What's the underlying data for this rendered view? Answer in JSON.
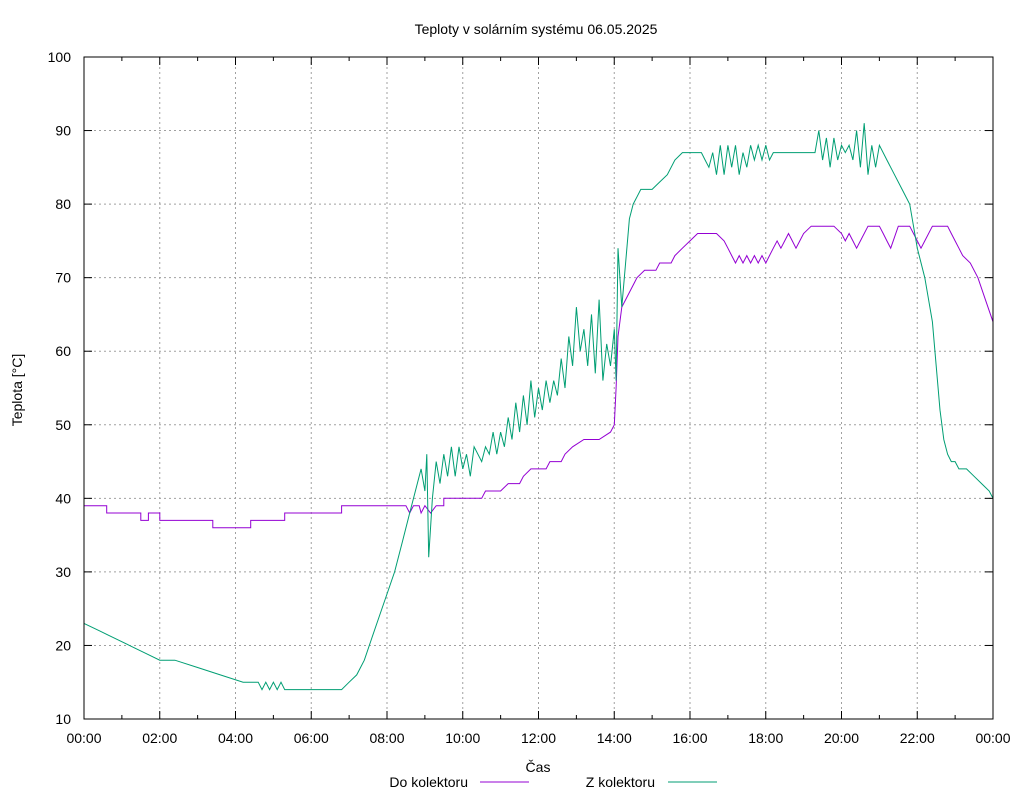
{
  "chart_data": {
    "type": "line",
    "title": "Teploty v solárním systému 06.05.2025",
    "xlabel": "Čas",
    "ylabel": "Teplota [°C]",
    "xlim": [
      0,
      24
    ],
    "ylim": [
      10,
      100
    ],
    "grid": true,
    "legend_position": "bottom",
    "x_ticks": [
      {
        "v": 0,
        "label": "00:00"
      },
      {
        "v": 2,
        "label": "02:00"
      },
      {
        "v": 4,
        "label": "04:00"
      },
      {
        "v": 6,
        "label": "06:00"
      },
      {
        "v": 8,
        "label": "08:00"
      },
      {
        "v": 10,
        "label": "10:00"
      },
      {
        "v": 12,
        "label": "12:00"
      },
      {
        "v": 14,
        "label": "14:00"
      },
      {
        "v": 16,
        "label": "16:00"
      },
      {
        "v": 18,
        "label": "18:00"
      },
      {
        "v": 20,
        "label": "20:00"
      },
      {
        "v": 22,
        "label": "22:00"
      },
      {
        "v": 24,
        "label": "00:00"
      }
    ],
    "y_ticks": [
      {
        "v": 10,
        "label": "10"
      },
      {
        "v": 20,
        "label": "20"
      },
      {
        "v": 30,
        "label": "30"
      },
      {
        "v": 40,
        "label": "40"
      },
      {
        "v": 50,
        "label": "50"
      },
      {
        "v": 60,
        "label": "60"
      },
      {
        "v": 70,
        "label": "70"
      },
      {
        "v": 80,
        "label": "80"
      },
      {
        "v": 90,
        "label": "90"
      },
      {
        "v": 100,
        "label": "100"
      }
    ],
    "series": [
      {
        "name": "Do kolektoru",
        "color": "#9400d3",
        "points": [
          [
            0,
            39
          ],
          [
            0.6,
            39
          ],
          [
            0.6,
            38
          ],
          [
            1.5,
            38
          ],
          [
            1.5,
            37
          ],
          [
            1.7,
            37
          ],
          [
            1.7,
            38
          ],
          [
            2.0,
            38
          ],
          [
            2.0,
            37
          ],
          [
            3.4,
            37
          ],
          [
            3.4,
            36
          ],
          [
            4.4,
            36
          ],
          [
            4.4,
            37
          ],
          [
            5.3,
            37
          ],
          [
            5.3,
            38
          ],
          [
            6.8,
            38
          ],
          [
            6.8,
            39
          ],
          [
            8.5,
            39
          ],
          [
            8.6,
            38
          ],
          [
            8.7,
            39
          ],
          [
            8.85,
            39
          ],
          [
            8.9,
            38
          ],
          [
            9.0,
            39
          ],
          [
            9.15,
            38
          ],
          [
            9.3,
            39
          ],
          [
            9.5,
            39
          ],
          [
            9.5,
            40
          ],
          [
            10.5,
            40
          ],
          [
            10.6,
            41
          ],
          [
            11.0,
            41
          ],
          [
            11.2,
            42
          ],
          [
            11.5,
            42
          ],
          [
            11.6,
            43
          ],
          [
            11.8,
            44
          ],
          [
            12.2,
            44
          ],
          [
            12.3,
            45
          ],
          [
            12.6,
            45
          ],
          [
            12.7,
            46
          ],
          [
            12.9,
            47
          ],
          [
            13.2,
            48
          ],
          [
            13.6,
            48
          ],
          [
            13.9,
            49
          ],
          [
            14.0,
            50
          ],
          [
            14.05,
            55
          ],
          [
            14.1,
            62
          ],
          [
            14.2,
            66
          ],
          [
            14.4,
            68
          ],
          [
            14.6,
            70
          ],
          [
            14.8,
            71
          ],
          [
            15.1,
            71
          ],
          [
            15.2,
            72
          ],
          [
            15.5,
            72
          ],
          [
            15.6,
            73
          ],
          [
            15.8,
            74
          ],
          [
            16.0,
            75
          ],
          [
            16.2,
            76
          ],
          [
            16.7,
            76
          ],
          [
            16.9,
            75
          ],
          [
            17.0,
            74
          ],
          [
            17.1,
            73
          ],
          [
            17.2,
            72
          ],
          [
            17.3,
            73
          ],
          [
            17.4,
            72
          ],
          [
            17.5,
            73
          ],
          [
            17.6,
            72
          ],
          [
            17.7,
            73
          ],
          [
            17.8,
            72
          ],
          [
            17.9,
            73
          ],
          [
            18.0,
            72
          ],
          [
            18.1,
            73
          ],
          [
            18.2,
            74
          ],
          [
            18.3,
            75
          ],
          [
            18.4,
            74
          ],
          [
            18.5,
            75
          ],
          [
            18.6,
            76
          ],
          [
            18.7,
            75
          ],
          [
            18.8,
            74
          ],
          [
            18.9,
            75
          ],
          [
            19.0,
            76
          ],
          [
            19.2,
            77
          ],
          [
            19.8,
            77
          ],
          [
            20.0,
            76
          ],
          [
            20.1,
            75
          ],
          [
            20.2,
            76
          ],
          [
            20.3,
            75
          ],
          [
            20.4,
            74
          ],
          [
            20.5,
            75
          ],
          [
            20.7,
            77
          ],
          [
            21.0,
            77
          ],
          [
            21.1,
            76
          ],
          [
            21.2,
            75
          ],
          [
            21.3,
            74
          ],
          [
            21.5,
            77
          ],
          [
            21.8,
            77
          ],
          [
            21.9,
            76
          ],
          [
            22.0,
            75
          ],
          [
            22.1,
            74
          ],
          [
            22.2,
            75
          ],
          [
            22.4,
            77
          ],
          [
            22.8,
            77
          ],
          [
            22.9,
            76
          ],
          [
            23.0,
            75
          ],
          [
            23.1,
            74
          ],
          [
            23.2,
            73
          ],
          [
            23.4,
            72
          ],
          [
            23.6,
            70
          ],
          [
            23.8,
            67
          ],
          [
            24.0,
            64
          ],
          [
            24.0,
            64
          ]
        ]
      },
      {
        "name": "Z kolektoru",
        "color": "#009e73",
        "points": [
          [
            0,
            23
          ],
          [
            0.4,
            22
          ],
          [
            0.8,
            21
          ],
          [
            1.2,
            20
          ],
          [
            1.6,
            19
          ],
          [
            2.0,
            18
          ],
          [
            2.4,
            18
          ],
          [
            3.0,
            17
          ],
          [
            3.6,
            16
          ],
          [
            4.2,
            15
          ],
          [
            4.6,
            15
          ],
          [
            4.7,
            14
          ],
          [
            4.8,
            15
          ],
          [
            4.9,
            14
          ],
          [
            5.0,
            15
          ],
          [
            5.1,
            14
          ],
          [
            5.2,
            15
          ],
          [
            5.3,
            14
          ],
          [
            6.2,
            14
          ],
          [
            6.8,
            14
          ],
          [
            7.0,
            15
          ],
          [
            7.2,
            16
          ],
          [
            7.4,
            18
          ],
          [
            7.6,
            21
          ],
          [
            7.8,
            24
          ],
          [
            8.0,
            27
          ],
          [
            8.2,
            30
          ],
          [
            8.4,
            34
          ],
          [
            8.6,
            38
          ],
          [
            8.8,
            42
          ],
          [
            8.9,
            44
          ],
          [
            9.0,
            41
          ],
          [
            9.05,
            46
          ],
          [
            9.1,
            32
          ],
          [
            9.2,
            40
          ],
          [
            9.3,
            45
          ],
          [
            9.4,
            42
          ],
          [
            9.5,
            46
          ],
          [
            9.6,
            43
          ],
          [
            9.7,
            47
          ],
          [
            9.8,
            43
          ],
          [
            9.9,
            47
          ],
          [
            10.0,
            44
          ],
          [
            10.1,
            46
          ],
          [
            10.2,
            43
          ],
          [
            10.3,
            47
          ],
          [
            10.5,
            45
          ],
          [
            10.6,
            47
          ],
          [
            10.7,
            46
          ],
          [
            10.8,
            49
          ],
          [
            10.9,
            46
          ],
          [
            11.0,
            49
          ],
          [
            11.1,
            47
          ],
          [
            11.2,
            51
          ],
          [
            11.3,
            48
          ],
          [
            11.4,
            53
          ],
          [
            11.5,
            49
          ],
          [
            11.6,
            54
          ],
          [
            11.7,
            50
          ],
          [
            11.8,
            56
          ],
          [
            11.9,
            51
          ],
          [
            12.0,
            55
          ],
          [
            12.1,
            52
          ],
          [
            12.2,
            56
          ],
          [
            12.3,
            53
          ],
          [
            12.4,
            56
          ],
          [
            12.5,
            54
          ],
          [
            12.6,
            59
          ],
          [
            12.7,
            55
          ],
          [
            12.8,
            62
          ],
          [
            12.9,
            58
          ],
          [
            13.0,
            66
          ],
          [
            13.1,
            60
          ],
          [
            13.2,
            63
          ],
          [
            13.3,
            58
          ],
          [
            13.4,
            65
          ],
          [
            13.5,
            57
          ],
          [
            13.6,
            67
          ],
          [
            13.7,
            56
          ],
          [
            13.8,
            61
          ],
          [
            13.9,
            58
          ],
          [
            14.0,
            63
          ],
          [
            14.05,
            56
          ],
          [
            14.1,
            74
          ],
          [
            14.2,
            66
          ],
          [
            14.3,
            72
          ],
          [
            14.4,
            78
          ],
          [
            14.5,
            80
          ],
          [
            14.6,
            81
          ],
          [
            14.7,
            82
          ],
          [
            15.0,
            82
          ],
          [
            15.2,
            83
          ],
          [
            15.4,
            84
          ],
          [
            15.6,
            86
          ],
          [
            15.8,
            87
          ],
          [
            16.3,
            87
          ],
          [
            16.4,
            86
          ],
          [
            16.5,
            85
          ],
          [
            16.6,
            87
          ],
          [
            16.7,
            84
          ],
          [
            16.8,
            88
          ],
          [
            16.9,
            84
          ],
          [
            17.0,
            88
          ],
          [
            17.1,
            85
          ],
          [
            17.2,
            88
          ],
          [
            17.3,
            84
          ],
          [
            17.4,
            87
          ],
          [
            17.5,
            85
          ],
          [
            17.6,
            88
          ],
          [
            17.7,
            86
          ],
          [
            17.8,
            88
          ],
          [
            17.9,
            86
          ],
          [
            18.0,
            88
          ],
          [
            18.1,
            86
          ],
          [
            18.2,
            87
          ],
          [
            18.6,
            87
          ],
          [
            19.0,
            87
          ],
          [
            19.3,
            87
          ],
          [
            19.4,
            90
          ],
          [
            19.5,
            86
          ],
          [
            19.6,
            89
          ],
          [
            19.7,
            85
          ],
          [
            19.8,
            89
          ],
          [
            19.9,
            86
          ],
          [
            20.0,
            88
          ],
          [
            20.1,
            87
          ],
          [
            20.2,
            88
          ],
          [
            20.3,
            86
          ],
          [
            20.4,
            90
          ],
          [
            20.5,
            85
          ],
          [
            20.6,
            91
          ],
          [
            20.7,
            84
          ],
          [
            20.8,
            88
          ],
          [
            20.9,
            85
          ],
          [
            21.0,
            88
          ],
          [
            21.2,
            86
          ],
          [
            21.4,
            84
          ],
          [
            21.6,
            82
          ],
          [
            21.8,
            80
          ],
          [
            22.0,
            74
          ],
          [
            22.2,
            70
          ],
          [
            22.4,
            64
          ],
          [
            22.5,
            58
          ],
          [
            22.6,
            52
          ],
          [
            22.7,
            48
          ],
          [
            22.8,
            46
          ],
          [
            22.9,
            45
          ],
          [
            23.0,
            45
          ],
          [
            23.1,
            44
          ],
          [
            23.3,
            44
          ],
          [
            23.5,
            43
          ],
          [
            23.7,
            42
          ],
          [
            23.9,
            41
          ],
          [
            24.0,
            40
          ]
        ]
      }
    ]
  }
}
